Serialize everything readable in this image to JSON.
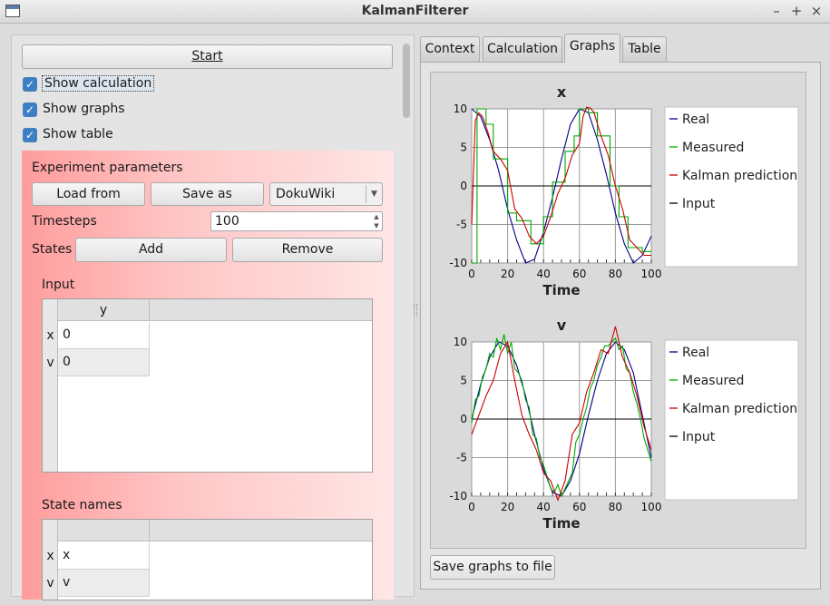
{
  "window": {
    "title": "KalmanFilterer",
    "controls": [
      "–",
      "+",
      "×"
    ]
  },
  "left": {
    "start_label": "Start",
    "checkboxes": [
      {
        "label": "Show calculation",
        "checked": true
      },
      {
        "label": "Show graphs",
        "checked": true
      },
      {
        "label": "Show table",
        "checked": true
      }
    ],
    "experiment_parameters": "Experiment parameters",
    "load_from": "Load from",
    "save_as": "Save as",
    "format_value": "DokuWiki",
    "timesteps_label": "Timesteps",
    "timesteps_value": "100",
    "states_label": "States",
    "add_label": "Add",
    "remove_label": "Remove",
    "input_title": "Input",
    "input_table": {
      "column": "y",
      "rows": [
        {
          "header": "x",
          "value": "0"
        },
        {
          "header": "v",
          "value": "0"
        }
      ]
    },
    "state_names_title": "State names",
    "state_names_table": {
      "rows": [
        {
          "header": "x",
          "value": "x"
        },
        {
          "header": "v",
          "value": "v"
        }
      ]
    }
  },
  "tabs": [
    {
      "label": "Context"
    },
    {
      "label": "Calculation"
    },
    {
      "label": "Graphs",
      "active": true
    },
    {
      "label": "Table"
    }
  ],
  "save_graphs_label": "Save graphs to file",
  "colors": {
    "real": "#00008b",
    "measured": "#00aa00",
    "kalman": "#cc0000",
    "input": "#000000"
  },
  "chart_data": [
    {
      "type": "line",
      "title": "x",
      "xlabel": "Time",
      "xlim": [
        0,
        100
      ],
      "ylim": [
        -10,
        10
      ],
      "x_ticks": [
        0,
        20,
        40,
        60,
        80,
        100
      ],
      "y_ticks": [
        10,
        5,
        0,
        -5,
        -10
      ],
      "grid": true,
      "legend": "right",
      "series": [
        {
          "name": "Real",
          "color": "#00008b",
          "x": [
            0,
            5,
            10,
            15,
            20,
            25,
            30,
            35,
            40,
            45,
            50,
            55,
            60,
            65,
            70,
            75,
            80,
            85,
            90,
            95,
            100
          ],
          "y": [
            10,
            9,
            6,
            2,
            -3,
            -7,
            -10,
            -9.5,
            -6,
            -1.5,
            3.5,
            8,
            10,
            9.5,
            6,
            1.5,
            -3.5,
            -7.5,
            -10,
            -9,
            -6.5
          ]
        },
        {
          "name": "Measured",
          "color": "#00aa00",
          "x": [
            0,
            3,
            3,
            8,
            8,
            12,
            12,
            20,
            20,
            25,
            25,
            33,
            33,
            40,
            40,
            45,
            45,
            52,
            52,
            57,
            57,
            60,
            60,
            65,
            65,
            70,
            70,
            77,
            77,
            82,
            82,
            87,
            87,
            95,
            95,
            100
          ],
          "y": [
            -10,
            -10,
            10,
            10,
            8,
            8,
            3.5,
            3.5,
            -3.5,
            -3.5,
            -4.5,
            -4.5,
            -7.5,
            -7.5,
            -4,
            -4,
            0.5,
            0.5,
            4.5,
            4.5,
            6.5,
            6.5,
            10,
            10,
            9.5,
            9.5,
            6.5,
            6.5,
            0,
            0,
            -4,
            -4,
            -8,
            -8,
            -8.5,
            -8.5
          ]
        },
        {
          "name": "Kalman prediction",
          "color": "#cc0000",
          "x": [
            0,
            2,
            4,
            6,
            9,
            12,
            16,
            20,
            24,
            28,
            32,
            36,
            40,
            44,
            48,
            52,
            56,
            60,
            62,
            64,
            66,
            68,
            72,
            76,
            80,
            84,
            88,
            92,
            96,
            100
          ],
          "y": [
            -5,
            8.5,
            9.5,
            9,
            7,
            4.5,
            3.5,
            2,
            -3,
            -4.2,
            -6.5,
            -7.5,
            -6.5,
            -4,
            -1,
            1,
            4,
            5.5,
            9,
            10.2,
            10.1,
            9.6,
            6.5,
            4,
            0,
            -3,
            -7,
            -8,
            -9,
            -9
          ]
        },
        {
          "name": "Input",
          "color": "#000000",
          "x": [
            0,
            100
          ],
          "y": [
            0,
            0
          ]
        }
      ]
    },
    {
      "type": "line",
      "title": "v",
      "xlabel": "Time",
      "xlim": [
        0,
        100
      ],
      "ylim": [
        -10,
        10
      ],
      "x_ticks": [
        0,
        20,
        40,
        60,
        80,
        100
      ],
      "y_ticks": [
        10,
        5,
        0,
        -5,
        -10
      ],
      "grid": true,
      "legend": "right",
      "series": [
        {
          "name": "Real",
          "color": "#00008b",
          "x": [
            0,
            5,
            10,
            15,
            20,
            25,
            30,
            35,
            40,
            45,
            50,
            55,
            60,
            65,
            70,
            75,
            80,
            85,
            90,
            95,
            100
          ],
          "y": [
            0,
            4.5,
            8,
            10,
            9.5,
            7,
            3,
            -2,
            -6.5,
            -9.5,
            -10,
            -8,
            -4.5,
            0.5,
            5,
            8.5,
            10,
            9,
            6,
            0.5,
            -5
          ]
        },
        {
          "name": "Measured",
          "color": "#00aa00",
          "x": [
            0,
            2,
            4,
            6,
            8,
            10,
            12,
            14,
            16,
            18,
            20,
            22,
            24,
            26,
            28,
            30,
            32,
            34,
            36,
            38,
            40,
            42,
            44,
            46,
            48,
            50,
            52,
            54,
            56,
            58,
            60,
            62,
            64,
            66,
            68,
            70,
            72,
            74,
            76,
            78,
            80,
            82,
            84,
            86,
            88,
            90,
            92,
            94,
            96,
            98,
            100
          ],
          "y": [
            -0.5,
            2.5,
            3,
            5.5,
            6.5,
            8.5,
            8,
            10.5,
            9,
            11,
            8.5,
            10,
            6.5,
            6,
            5,
            2.5,
            1.5,
            -2,
            -2.5,
            -5,
            -6,
            -7.5,
            -9,
            -9.5,
            -8.5,
            -10,
            -9,
            -8,
            -7,
            -3,
            -2,
            0,
            1.5,
            4,
            5,
            7,
            8,
            9.5,
            9.5,
            10,
            10.5,
            9,
            9.5,
            6.5,
            6,
            3.5,
            2,
            0,
            -2.5,
            -4,
            -5.5
          ]
        },
        {
          "name": "Kalman prediction",
          "color": "#cc0000",
          "x": [
            0,
            4,
            8,
            12,
            16,
            20,
            24,
            28,
            32,
            36,
            40,
            44,
            48,
            52,
            56,
            60,
            64,
            68,
            72,
            76,
            80,
            82,
            84,
            88,
            92,
            96,
            100
          ],
          "y": [
            -2,
            0.5,
            3,
            5,
            8.5,
            10,
            5,
            0.5,
            -2,
            -4,
            -7,
            -8,
            -10.5,
            -8,
            -2,
            -0.5,
            3.5,
            6,
            9,
            8.5,
            12,
            10,
            8,
            6,
            3,
            -1,
            -4
          ]
        },
        {
          "name": "Input",
          "color": "#000000",
          "x": [
            0,
            100
          ],
          "y": [
            0,
            0
          ]
        }
      ]
    }
  ]
}
